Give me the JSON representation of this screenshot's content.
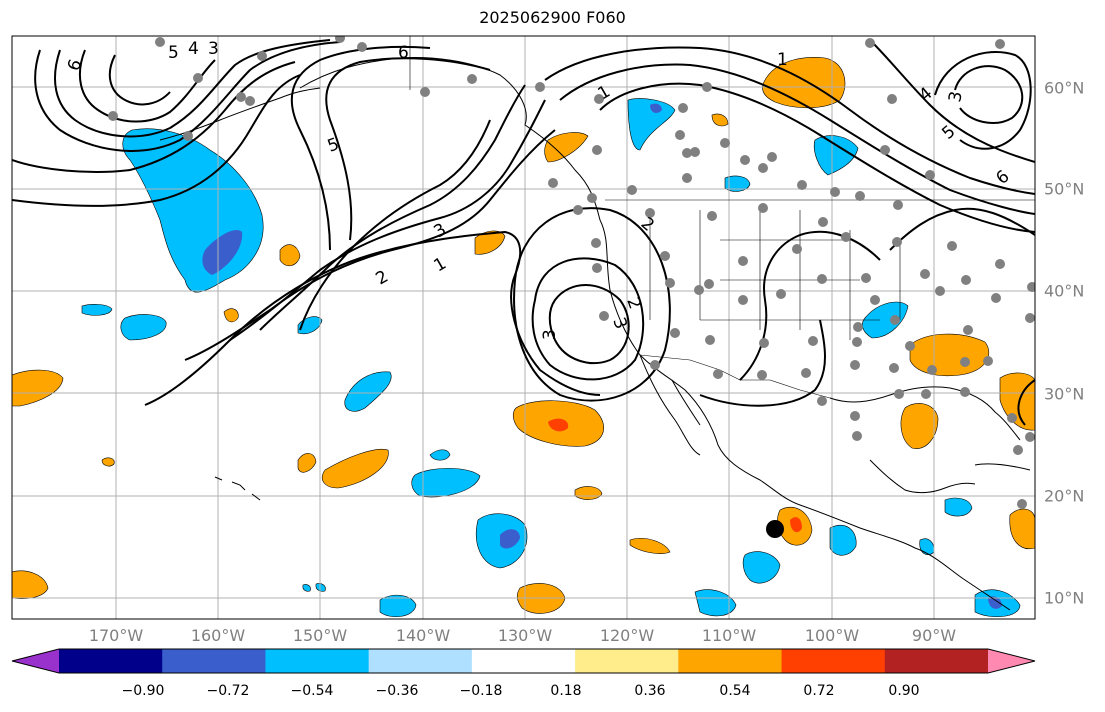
{
  "title": "2025062900 F060",
  "lon_labels": [
    "170°W",
    "160°W",
    "150°W",
    "140°W",
    "130°W",
    "120°W",
    "110°W",
    "100°W",
    "90°W"
  ],
  "lat_labels": [
    "60°N",
    "50°N",
    "40°N",
    "30°N",
    "20°N",
    "10°N"
  ],
  "colorbar": {
    "ticks": [
      "−0.90",
      "−0.72",
      "−0.54",
      "−0.36",
      "−0.18",
      "0.18",
      "0.36",
      "0.54",
      "0.72",
      "0.90"
    ],
    "colors": [
      "#9932cc",
      "#00008b",
      "#3a5fcd",
      "#00bfff",
      "#b0e0ff",
      "#ffffff",
      "#ffec8b",
      "#ffa500",
      "#ff4000",
      "#b22222",
      "#ff89b0"
    ]
  },
  "contour_labels": [
    "6",
    "5",
    "4",
    "3",
    "2",
    "1",
    "6",
    "5",
    "3",
    "2",
    "1",
    "3",
    "5",
    "6",
    "4",
    "3",
    "3",
    "2",
    "1"
  ],
  "colors": {
    "gridline": "#b0b0b0",
    "label_gray": "#808080",
    "contour": "#000000",
    "coast": "#000000",
    "station": "#808080",
    "positive": "#ffa500",
    "strong_positive": "#ff4000",
    "negative": "#00bfff",
    "strong_negative": "#3a5fcd"
  }
}
